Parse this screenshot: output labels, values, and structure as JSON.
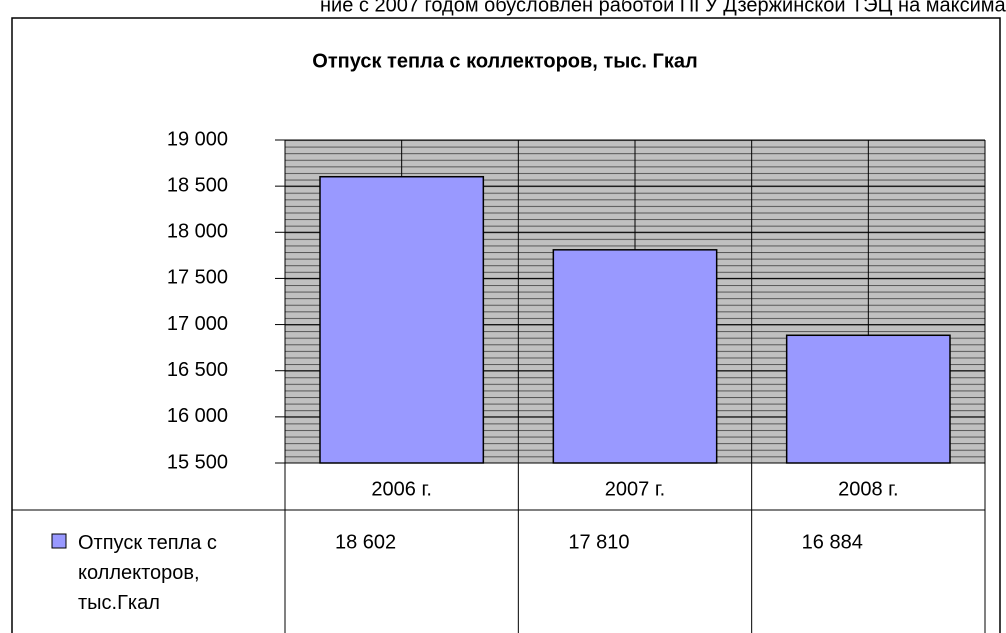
{
  "caption_fragment": "ние с 2007 годом обусловлен работой ПГУ Дзержинской ТЭЦ на максимальной н",
  "chart_data": {
    "type": "bar",
    "title": "Отпуск тепла с коллекторов, тыс. Гкал",
    "categories": [
      "2006 г.",
      "2007 г.",
      "2008 г."
    ],
    "series": [
      {
        "name": "Отпуск тепла с коллекторов, тыс.Гкал",
        "color": "#9999ff",
        "values": [
          18602,
          17810,
          16884
        ],
        "value_labels": [
          "18 602",
          "17 810",
          "16 884"
        ]
      }
    ],
    "ylim": [
      15500,
      19000
    ],
    "yticks": [
      {
        "value": 15500,
        "label": "15 500"
      },
      {
        "value": 16000,
        "label": "16 000"
      },
      {
        "value": 16500,
        "label": "16 500"
      },
      {
        "value": 17000,
        "label": "17 000"
      },
      {
        "value": 17500,
        "label": "17 500"
      },
      {
        "value": 18000,
        "label": "18 000"
      },
      {
        "value": 18500,
        "label": "18 500"
      },
      {
        "value": 19000,
        "label": "19 000"
      }
    ],
    "grid": true,
    "plot_background": "#c0c0c0"
  }
}
